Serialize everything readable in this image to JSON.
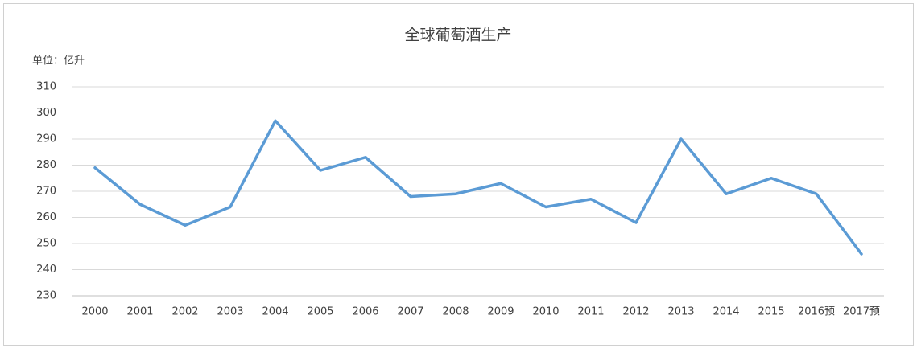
{
  "chart_data": {
    "type": "line",
    "title": "全球葡萄酒生产",
    "unit_label": "单位：亿升",
    "categories": [
      "2000",
      "2001",
      "2002",
      "2003",
      "2004",
      "2005",
      "2006",
      "2007",
      "2008",
      "2009",
      "2010",
      "2011",
      "2012",
      "2013",
      "2014",
      "2015",
      "2016预",
      "2017预"
    ],
    "values": [
      279,
      265,
      257,
      264,
      297,
      278,
      283,
      268,
      269,
      273,
      264,
      267,
      258,
      290,
      269,
      275,
      269,
      246
    ],
    "color": "#5b9bd5",
    "ylim": [
      230,
      310
    ],
    "yticks": [
      230,
      240,
      250,
      260,
      270,
      280,
      290,
      300,
      310
    ],
    "grid": true
  }
}
